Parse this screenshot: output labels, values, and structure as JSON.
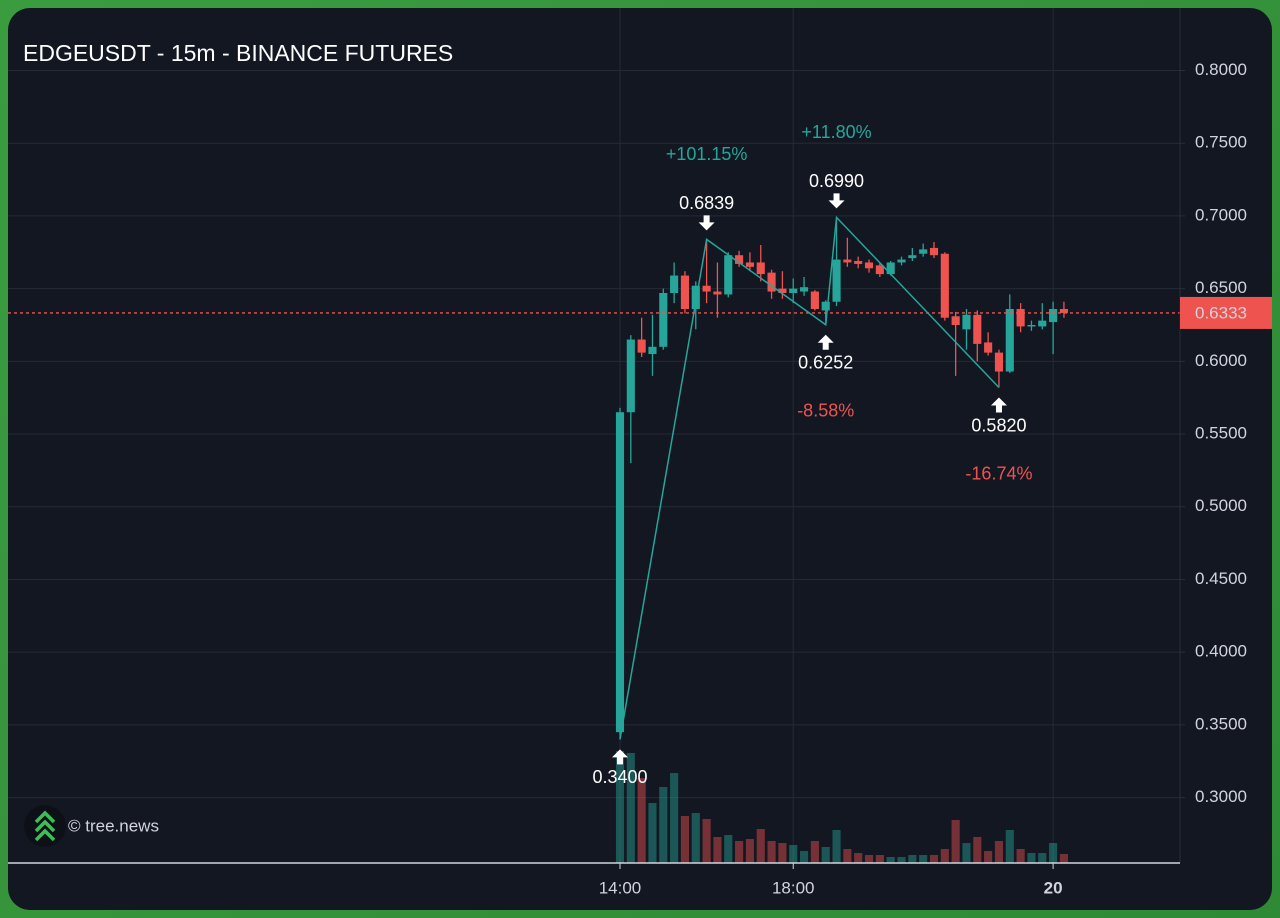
{
  "chart_data": {
    "type": "candlestick",
    "title": "EDGEUSDT - 15m - BINANCE FUTURES",
    "watermark": "© tree.news",
    "up_color": "#26a69a",
    "down_color": "#ef5350",
    "x": [
      14,
      14.25,
      14.5,
      14.75,
      15,
      15.25,
      15.5,
      15.75,
      16,
      16.25,
      16.5,
      16.75,
      17,
      17.25,
      17.5,
      17.75,
      18,
      18.25,
      18.5,
      18.75,
      19,
      19.25,
      19.5,
      19.75,
      20,
      20.25,
      20.5,
      20.75,
      21,
      21.25,
      21.5,
      21.75,
      22,
      22.25,
      22.5,
      22.75,
      23,
      23.25,
      23.5,
      23.75,
      24,
      24.25
    ],
    "open": [
      0.345,
      0.565,
      0.615,
      0.605,
      0.61,
      0.647,
      0.659,
      0.636,
      0.652,
      0.648,
      0.646,
      0.673,
      0.668,
      0.668,
      0.661,
      0.65,
      0.647,
      0.648,
      0.648,
      0.635,
      0.641,
      0.67,
      0.669,
      0.668,
      0.666,
      0.66,
      0.668,
      0.671,
      0.674,
      0.678,
      0.674,
      0.631,
      0.622,
      0.632,
      0.613,
      0.606,
      0.593,
      0.636,
      0.624,
      0.624,
      0.627,
      0.636
    ],
    "high": [
      0.568,
      0.618,
      0.63,
      0.632,
      0.65,
      0.668,
      0.662,
      0.655,
      0.6839,
      0.668,
      0.675,
      0.676,
      0.675,
      0.68,
      0.663,
      0.662,
      0.657,
      0.658,
      0.649,
      0.642,
      0.699,
      0.685,
      0.672,
      0.67,
      0.668,
      0.669,
      0.672,
      0.678,
      0.681,
      0.682,
      0.675,
      0.634,
      0.636,
      0.635,
      0.62,
      0.608,
      0.646,
      0.64,
      0.628,
      0.64,
      0.641,
      0.641
    ],
    "low": [
      0.34,
      0.53,
      0.603,
      0.59,
      0.608,
      0.64,
      0.633,
      0.622,
      0.64,
      0.63,
      0.644,
      0.665,
      0.662,
      0.655,
      0.643,
      0.643,
      0.64,
      0.645,
      0.635,
      0.6252,
      0.638,
      0.665,
      0.664,
      0.661,
      0.658,
      0.659,
      0.666,
      0.669,
      0.672,
      0.671,
      0.628,
      0.59,
      0.608,
      0.6,
      0.604,
      0.582,
      0.592,
      0.62,
      0.621,
      0.622,
      0.605,
      0.63
    ],
    "close": [
      0.565,
      0.615,
      0.606,
      0.61,
      0.647,
      0.659,
      0.636,
      0.652,
      0.648,
      0.646,
      0.673,
      0.667,
      0.665,
      0.66,
      0.648,
      0.647,
      0.65,
      0.651,
      0.636,
      0.641,
      0.67,
      0.668,
      0.667,
      0.664,
      0.66,
      0.668,
      0.67,
      0.673,
      0.677,
      0.673,
      0.63,
      0.625,
      0.632,
      0.612,
      0.606,
      0.593,
      0.636,
      0.624,
      0.625,
      0.628,
      0.636,
      0.6333
    ],
    "volume": [
      112,
      110,
      85,
      60,
      76,
      90,
      47,
      50,
      44,
      26,
      28,
      22,
      24,
      34,
      22,
      20,
      18,
      12,
      22,
      16,
      33,
      14,
      10,
      8,
      8,
      6,
      6,
      8,
      8,
      8,
      14,
      43,
      20,
      26,
      12,
      22,
      33,
      14,
      10,
      10,
      20,
      9
    ],
    "zigzag": {
      "x": [
        14,
        16,
        18.75,
        19,
        22.75
      ],
      "values": [
        0.34,
        0.6839,
        0.6252,
        0.699,
        0.582
      ],
      "value_labels": [
        "0.3400",
        "0.6839",
        "0.6252",
        "0.6990",
        "0.5820"
      ],
      "changes": [
        101.15,
        -8.58,
        11.8,
        -16.74
      ],
      "change_labels": [
        "+101.15%",
        "-8.58%",
        "+11.80%",
        "-16.74%"
      ]
    },
    "last_price": 0.6333,
    "xlim": [
      -0.13,
      26.93
    ],
    "ylim": [
      0.255,
      0.843
    ],
    "xticks": [
      {
        "value": 14,
        "label": "14:00"
      },
      {
        "value": 18,
        "label": "18:00"
      },
      {
        "value": 24,
        "label": "20"
      }
    ],
    "yticks": [
      {
        "value": 0.3,
        "label": "0.3000"
      },
      {
        "value": 0.35,
        "label": "0.3500"
      },
      {
        "value": 0.4,
        "label": "0.4000"
      },
      {
        "value": 0.45,
        "label": "0.4500"
      },
      {
        "value": 0.5,
        "label": "0.5000"
      },
      {
        "value": 0.55,
        "label": "0.5500"
      },
      {
        "value": 0.6,
        "label": "0.6000"
      },
      {
        "value": 0.65,
        "label": "0.6500"
      },
      {
        "value": 0.7,
        "label": "0.7000"
      },
      {
        "value": 0.75,
        "label": "0.7500"
      },
      {
        "value": 0.8,
        "label": "0.8000"
      }
    ],
    "grid": true
  }
}
